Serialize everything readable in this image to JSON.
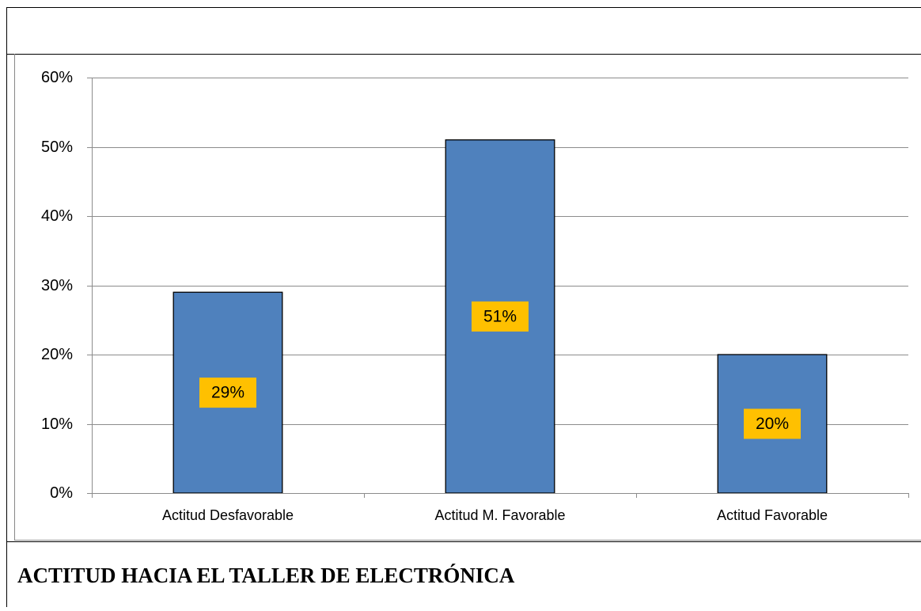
{
  "chart_data": {
    "type": "bar",
    "title": "ACTITUD HACIA EL TALLER DE ELECTRÓNICA",
    "categories": [
      "Actitud Desfavorable",
      "Actitud M. Favorable",
      "Actitud Favorable"
    ],
    "values": [
      29,
      51,
      20
    ],
    "value_labels": [
      "29%",
      "51%",
      "20%"
    ],
    "color": "#4f81bd",
    "ylim": [
      0,
      60
    ],
    "yticks": [
      {
        "value": 0,
        "label": "0%"
      },
      {
        "value": 10,
        "label": "10%"
      },
      {
        "value": 20,
        "label": "20%"
      },
      {
        "value": 30,
        "label": "30%"
      },
      {
        "value": 40,
        "label": "40%"
      },
      {
        "value": 50,
        "label": "50%"
      },
      {
        "value": 60,
        "label": "60%"
      }
    ],
    "grid": true
  }
}
